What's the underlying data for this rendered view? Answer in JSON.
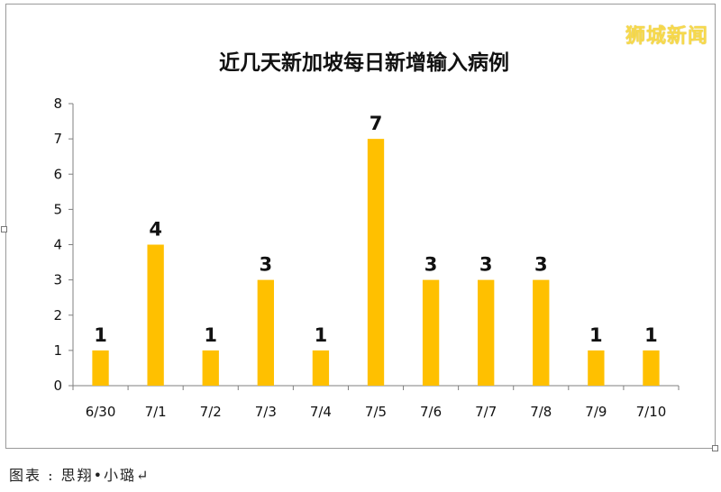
{
  "watermark": "狮城新闻",
  "caption": "图表 : 思翔•小璐↵",
  "chart_data": {
    "type": "bar",
    "title": "近几天新加坡每日新增输入病例",
    "categories": [
      "6/30",
      "7/1",
      "7/2",
      "7/3",
      "7/4",
      "7/5",
      "7/6",
      "7/7",
      "7/8",
      "7/9",
      "7/10"
    ],
    "values": [
      1,
      4,
      1,
      3,
      1,
      7,
      3,
      3,
      3,
      1,
      1
    ],
    "ylim": [
      0,
      8
    ],
    "yticks": [
      0,
      1,
      2,
      3,
      4,
      5,
      6,
      7,
      8
    ],
    "grid": false,
    "data_labels": true,
    "bar_color": "#ffc000"
  }
}
